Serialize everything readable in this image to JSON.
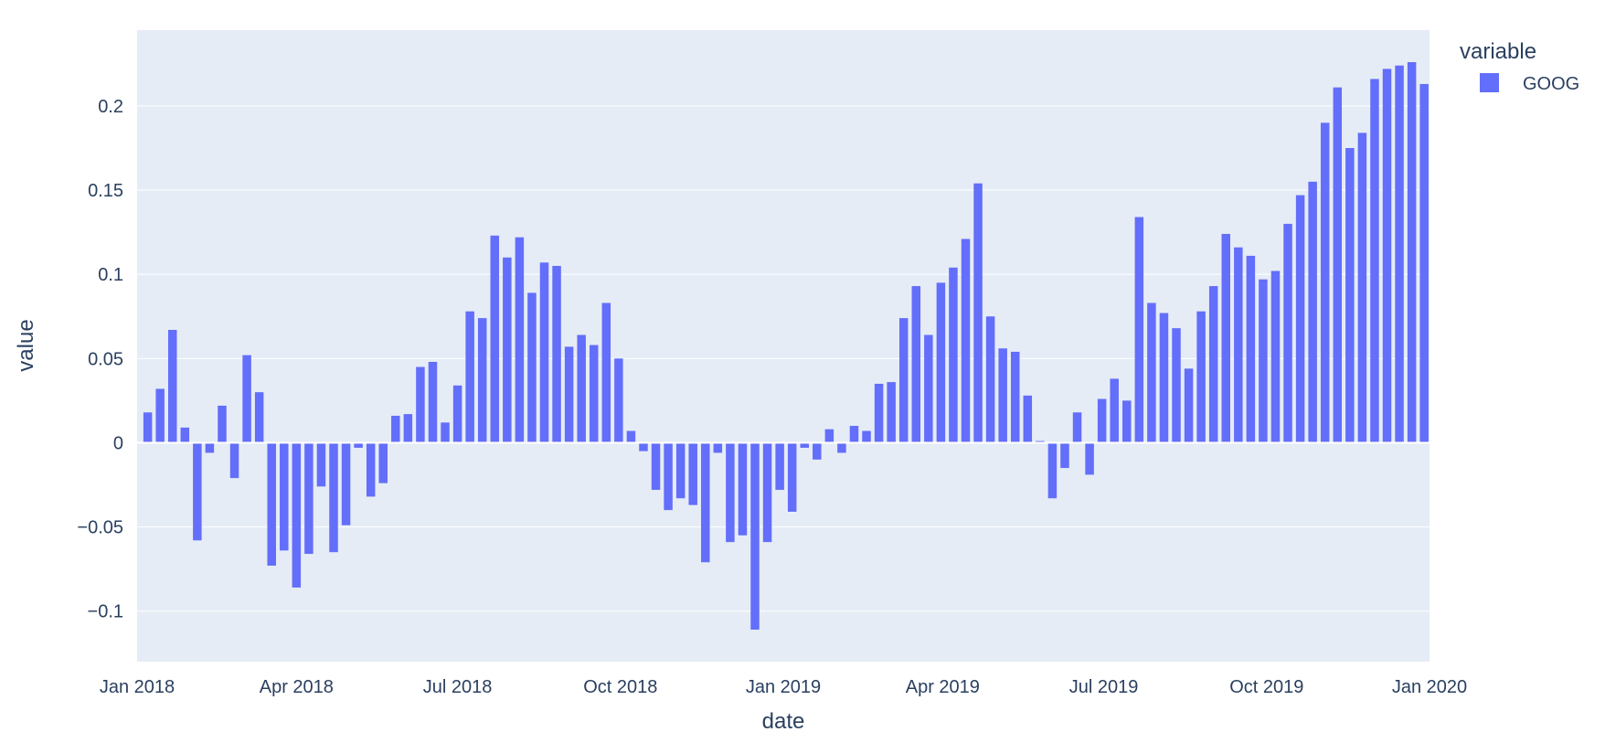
{
  "chart_data": {
    "type": "bar",
    "xlabel": "date",
    "ylabel": "value",
    "legend": {
      "title": "variable",
      "position": "top-right"
    },
    "x_range": [
      "2018-01-01",
      "2020-01-01"
    ],
    "ylim": [
      -0.13,
      0.245
    ],
    "grid": true,
    "colors": {
      "plot_bg": "#E5ECF6",
      "grid": "#ffffff",
      "bar": "#636EFA",
      "text": "#2a3f5f"
    },
    "x_ticks": [
      {
        "date": "2018-01-01",
        "label": "Jan 2018"
      },
      {
        "date": "2018-04-01",
        "label": "Apr 2018"
      },
      {
        "date": "2018-07-01",
        "label": "Jul 2018"
      },
      {
        "date": "2018-10-01",
        "label": "Oct 2018"
      },
      {
        "date": "2019-01-01",
        "label": "Jan 2019"
      },
      {
        "date": "2019-04-01",
        "label": "Apr 2019"
      },
      {
        "date": "2019-07-01",
        "label": "Jul 2019"
      },
      {
        "date": "2019-10-01",
        "label": "Oct 2019"
      },
      {
        "date": "2020-01-01",
        "label": "Jan 2020"
      }
    ],
    "y_ticks": [
      {
        "value": -0.1,
        "label": "−0.1"
      },
      {
        "value": -0.05,
        "label": "−0.05"
      },
      {
        "value": 0,
        "label": "0"
      },
      {
        "value": 0.05,
        "label": "0.05"
      },
      {
        "value": 0.1,
        "label": "0.1"
      },
      {
        "value": 0.15,
        "label": "0.15"
      },
      {
        "value": 0.2,
        "label": "0.2"
      }
    ],
    "series": [
      {
        "name": "GOOG",
        "color": "#636EFA",
        "x": [
          "2018-01-07",
          "2018-01-14",
          "2018-01-21",
          "2018-01-28",
          "2018-02-04",
          "2018-02-11",
          "2018-02-18",
          "2018-02-25",
          "2018-03-04",
          "2018-03-11",
          "2018-03-18",
          "2018-03-25",
          "2018-04-01",
          "2018-04-08",
          "2018-04-15",
          "2018-04-22",
          "2018-04-29",
          "2018-05-06",
          "2018-05-13",
          "2018-05-20",
          "2018-05-27",
          "2018-06-03",
          "2018-06-10",
          "2018-06-17",
          "2018-06-24",
          "2018-07-01",
          "2018-07-08",
          "2018-07-15",
          "2018-07-22",
          "2018-07-29",
          "2018-08-05",
          "2018-08-12",
          "2018-08-19",
          "2018-08-26",
          "2018-09-02",
          "2018-09-09",
          "2018-09-16",
          "2018-09-23",
          "2018-09-30",
          "2018-10-07",
          "2018-10-14",
          "2018-10-21",
          "2018-10-28",
          "2018-11-04",
          "2018-11-11",
          "2018-11-18",
          "2018-11-25",
          "2018-12-02",
          "2018-12-09",
          "2018-12-16",
          "2018-12-23",
          "2018-12-30",
          "2019-01-06",
          "2019-01-13",
          "2019-01-20",
          "2019-01-27",
          "2019-02-03",
          "2019-02-10",
          "2019-02-17",
          "2019-02-24",
          "2019-03-03",
          "2019-03-10",
          "2019-03-17",
          "2019-03-24",
          "2019-03-31",
          "2019-04-07",
          "2019-04-14",
          "2019-04-21",
          "2019-04-28",
          "2019-05-05",
          "2019-05-12",
          "2019-05-19",
          "2019-05-26",
          "2019-06-02",
          "2019-06-09",
          "2019-06-16",
          "2019-06-23",
          "2019-06-30",
          "2019-07-07",
          "2019-07-14",
          "2019-07-21",
          "2019-07-28",
          "2019-08-04",
          "2019-08-11",
          "2019-08-18",
          "2019-08-25",
          "2019-09-01",
          "2019-09-08",
          "2019-09-15",
          "2019-09-22",
          "2019-09-29",
          "2019-10-06",
          "2019-10-13",
          "2019-10-20",
          "2019-10-27",
          "2019-11-03",
          "2019-11-10",
          "2019-11-17",
          "2019-11-24",
          "2019-12-01",
          "2019-12-08",
          "2019-12-15",
          "2019-12-22",
          "2019-12-29"
        ],
        "values": [
          0.018,
          0.032,
          0.067,
          0.009,
          -0.058,
          -0.006,
          0.022,
          -0.021,
          0.052,
          0.03,
          -0.073,
          -0.064,
          -0.086,
          -0.066,
          -0.026,
          -0.065,
          -0.049,
          -0.003,
          -0.032,
          -0.024,
          0.016,
          0.017,
          0.045,
          0.048,
          0.012,
          0.034,
          0.078,
          0.074,
          0.123,
          0.11,
          0.122,
          0.089,
          0.107,
          0.105,
          0.057,
          0.064,
          0.058,
          0.083,
          0.05,
          0.007,
          -0.005,
          -0.028,
          -0.04,
          -0.033,
          -0.037,
          -0.071,
          -0.006,
          -0.059,
          -0.055,
          -0.111,
          -0.059,
          -0.028,
          -0.041,
          -0.003,
          -0.01,
          0.008,
          -0.006,
          0.01,
          0.007,
          0.035,
          0.036,
          0.074,
          0.093,
          0.064,
          0.095,
          0.104,
          0.121,
          0.154,
          0.075,
          0.056,
          0.054,
          0.028,
          0.001,
          -0.033,
          -0.015,
          0.018,
          -0.019,
          0.026,
          0.038,
          0.025,
          0.134,
          0.083,
          0.077,
          0.068,
          0.044,
          0.078,
          0.093,
          0.124,
          0.116,
          0.111,
          0.097,
          0.102,
          0.13,
          0.147,
          0.155,
          0.19,
          0.211,
          0.175,
          0.184,
          0.216,
          0.222,
          0.224,
          0.226,
          0.213
        ]
      }
    ]
  }
}
